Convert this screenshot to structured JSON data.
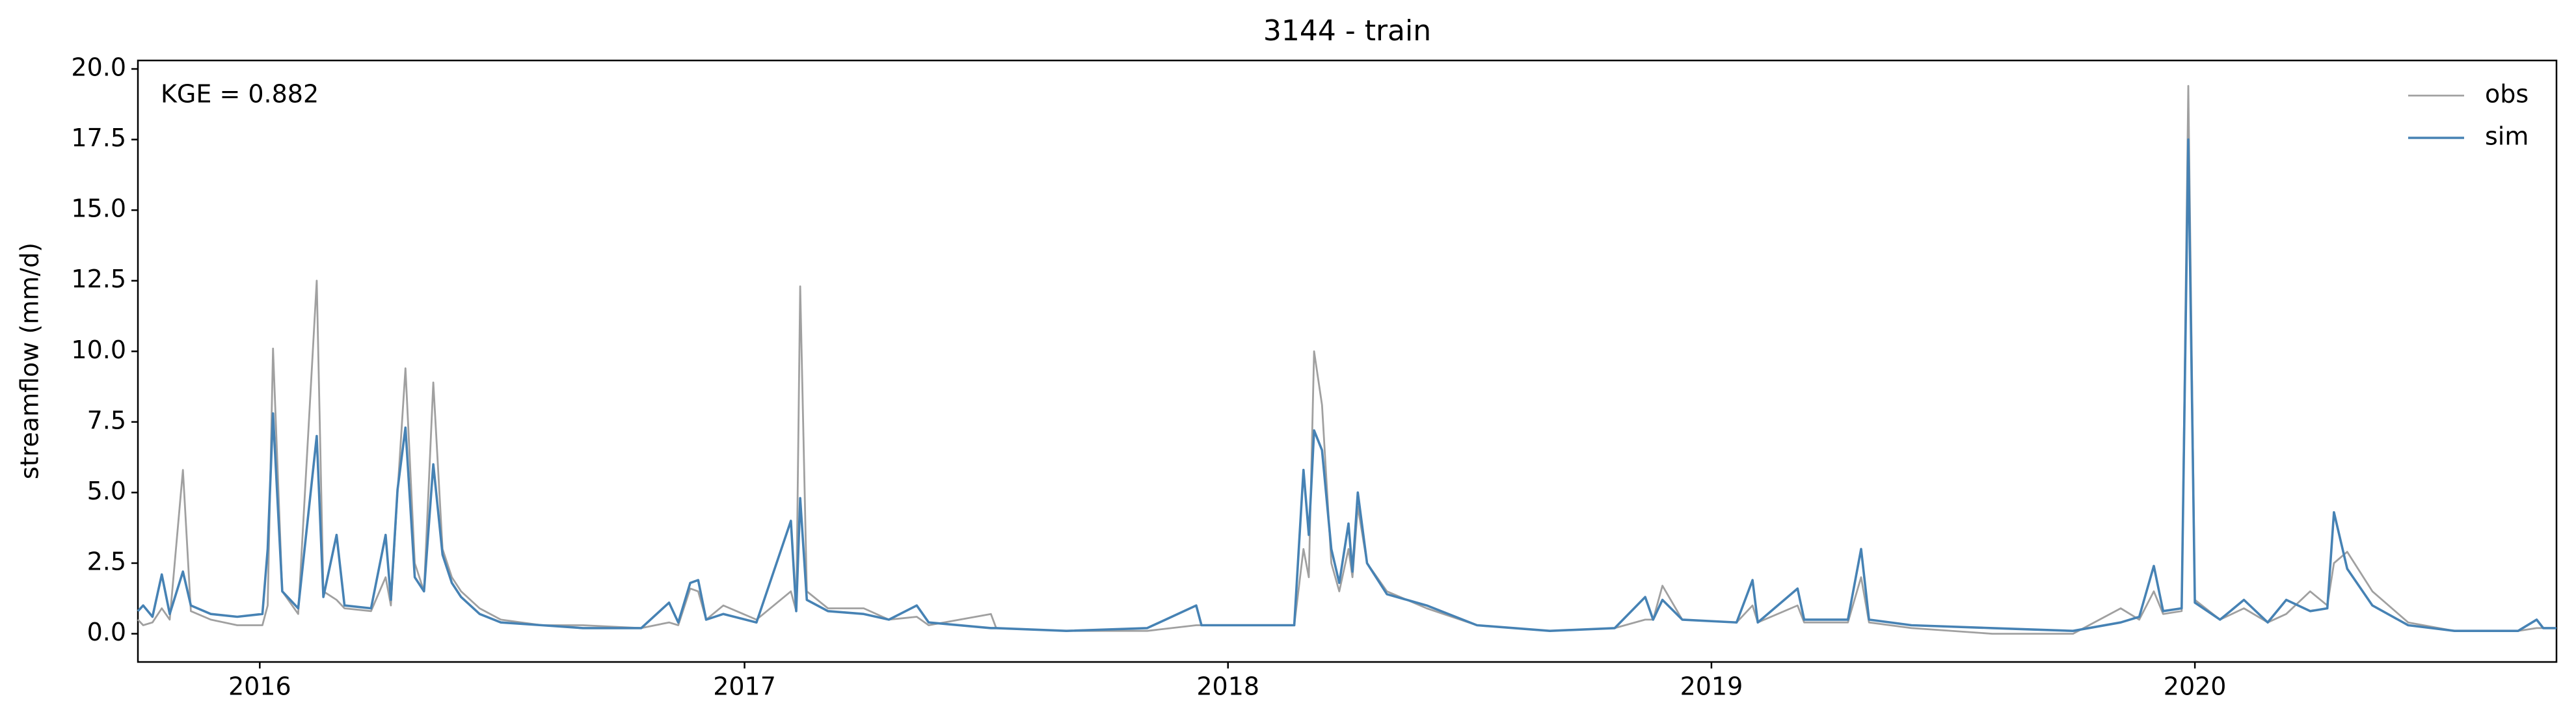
{
  "chart_data": {
    "type": "line",
    "title": "3144 - train",
    "ylabel": "streamflow (mm/d)",
    "annotation": "KGE = 0.882",
    "x": [
      "2015-10-01",
      "2015-10-05",
      "2015-10-12",
      "2015-10-19",
      "2015-10-25",
      "2015-11-04",
      "2015-11-10",
      "2015-11-25",
      "2015-12-15",
      "2016-01-03",
      "2016-01-07",
      "2016-01-11",
      "2016-01-18",
      "2016-01-30",
      "2016-02-13",
      "2016-02-18",
      "2016-02-28",
      "2016-03-05",
      "2016-03-25",
      "2016-04-05",
      "2016-04-09",
      "2016-04-14",
      "2016-04-20",
      "2016-04-27",
      "2016-05-04",
      "2016-05-11",
      "2016-05-18",
      "2016-05-25",
      "2016-06-01",
      "2016-06-15",
      "2016-07-01",
      "2016-08-01",
      "2016-09-01",
      "2016-10-15",
      "2016-11-05",
      "2016-11-12",
      "2016-11-21",
      "2016-11-27",
      "2016-12-03",
      "2016-12-16",
      "2017-01-10",
      "2017-02-05",
      "2017-02-09",
      "2017-02-12",
      "2017-02-17",
      "2017-03-05",
      "2017-04-01",
      "2017-04-20",
      "2017-05-11",
      "2017-05-20",
      "2017-07-06",
      "2017-07-10",
      "2017-09-01",
      "2017-11-01",
      "2017-12-08",
      "2017-12-12",
      "2018-02-20",
      "2018-02-27",
      "2018-03-03",
      "2018-03-07",
      "2018-03-13",
      "2018-03-20",
      "2018-03-26",
      "2018-04-02",
      "2018-04-05",
      "2018-04-09",
      "2018-04-16",
      "2018-05-01",
      "2018-05-31",
      "2018-07-08",
      "2018-09-01",
      "2018-10-20",
      "2018-11-12",
      "2018-11-18",
      "2018-11-25",
      "2018-12-10",
      "2019-01-20",
      "2019-02-01",
      "2019-02-05",
      "2019-03-07",
      "2019-03-12",
      "2019-04-14",
      "2019-04-24",
      "2019-04-30",
      "2019-06-01",
      "2019-08-01",
      "2019-10-01",
      "2019-11-06",
      "2019-11-20",
      "2019-12-01",
      "2019-12-08",
      "2019-12-22",
      "2019-12-27",
      "2020-01-01",
      "2020-01-20",
      "2020-02-07",
      "2020-02-25",
      "2020-03-10",
      "2020-03-28",
      "2020-04-10",
      "2020-04-15",
      "2020-04-25",
      "2020-05-14",
      "2020-06-10",
      "2020-07-15",
      "2020-09-01",
      "2020-09-15",
      "2020-09-20",
      "2020-09-30"
    ],
    "series": [
      {
        "name": "obs",
        "color": "#a0a0a0",
        "values": [
          0.5,
          0.3,
          0.4,
          0.9,
          0.5,
          5.8,
          0.8,
          0.5,
          0.3,
          0.3,
          1.0,
          10.1,
          1.5,
          0.7,
          12.5,
          1.5,
          1.2,
          0.9,
          0.8,
          2.0,
          1.0,
          5.0,
          9.4,
          2.5,
          1.5,
          8.9,
          3.0,
          2.0,
          1.5,
          0.9,
          0.5,
          0.3,
          0.3,
          0.2,
          0.4,
          0.3,
          1.6,
          1.5,
          0.5,
          1.0,
          0.5,
          1.5,
          0.8,
          12.3,
          1.5,
          0.9,
          0.9,
          0.5,
          0.6,
          0.3,
          0.7,
          0.2,
          0.1,
          0.1,
          0.3,
          0.3,
          0.3,
          3.0,
          2.0,
          10.0,
          8.1,
          2.5,
          1.5,
          3.0,
          2.0,
          4.5,
          2.5,
          1.5,
          0.9,
          0.3,
          0.1,
          0.2,
          0.5,
          0.5,
          1.7,
          0.5,
          0.4,
          1.0,
          0.4,
          1.0,
          0.4,
          0.4,
          2.0,
          0.4,
          0.2,
          0.0,
          0.0,
          0.9,
          0.5,
          1.5,
          0.7,
          0.8,
          19.4,
          1.2,
          0.5,
          0.9,
          0.4,
          0.7,
          1.5,
          1.0,
          2.5,
          2.9,
          1.5,
          0.4,
          0.1,
          0.1,
          0.2,
          0.2,
          0.2
        ]
      },
      {
        "name": "sim",
        "color": "#4682b4",
        "values": [
          0.8,
          1.0,
          0.6,
          2.1,
          0.7,
          2.2,
          1.0,
          0.7,
          0.6,
          0.7,
          3.0,
          7.8,
          1.5,
          0.9,
          7.0,
          1.3,
          3.5,
          1.0,
          0.9,
          3.5,
          1.2,
          5.1,
          7.3,
          2.0,
          1.5,
          6.0,
          2.8,
          1.8,
          1.3,
          0.7,
          0.4,
          0.3,
          0.2,
          0.2,
          1.1,
          0.4,
          1.8,
          1.9,
          0.5,
          0.7,
          0.4,
          4.0,
          0.8,
          4.8,
          1.2,
          0.8,
          0.7,
          0.5,
          1.0,
          0.4,
          0.2,
          0.2,
          0.1,
          0.2,
          1.0,
          0.3,
          0.3,
          5.8,
          3.5,
          7.2,
          6.5,
          3.0,
          1.8,
          3.9,
          2.2,
          5.0,
          2.5,
          1.4,
          1.0,
          0.3,
          0.1,
          0.2,
          1.3,
          0.5,
          1.2,
          0.5,
          0.4,
          1.9,
          0.4,
          1.6,
          0.5,
          0.5,
          3.0,
          0.5,
          0.3,
          0.2,
          0.1,
          0.4,
          0.6,
          2.4,
          0.8,
          0.9,
          17.5,
          1.1,
          0.5,
          1.2,
          0.4,
          1.2,
          0.8,
          0.9,
          4.3,
          2.3,
          1.0,
          0.3,
          0.1,
          0.1,
          0.5,
          0.2,
          0.2
        ]
      }
    ],
    "xlim": [
      "2015-10-01",
      "2020-09-30"
    ],
    "xticks": [
      {
        "value": "2016-01-01",
        "label": "2016"
      },
      {
        "value": "2017-01-01",
        "label": "2017"
      },
      {
        "value": "2018-01-01",
        "label": "2018"
      },
      {
        "value": "2019-01-01",
        "label": "2019"
      },
      {
        "value": "2020-01-01",
        "label": "2020"
      }
    ],
    "ylim": [
      -1.0,
      20.3
    ],
    "yticks": [
      {
        "value": 0,
        "label": "0.0"
      },
      2.5,
      {
        "value": 5,
        "label": "5.0"
      },
      7.5,
      {
        "value": 10,
        "label": "10.0"
      },
      12.5,
      {
        "value": 15,
        "label": "15.0"
      },
      17.5,
      {
        "value": 20,
        "label": "20.0"
      }
    ],
    "legend": "upper right"
  }
}
